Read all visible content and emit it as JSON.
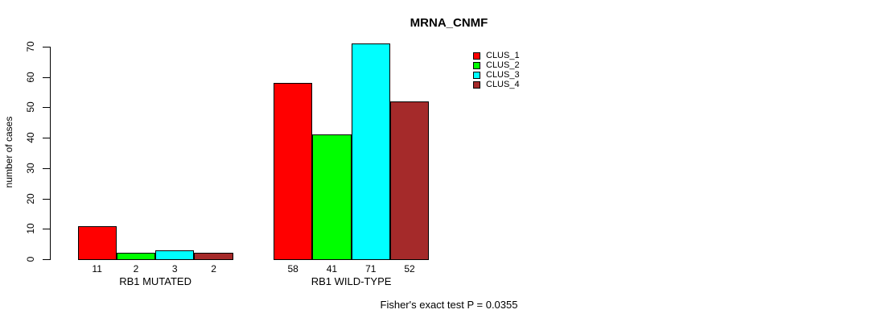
{
  "title": "MRNA_CNMF",
  "footer": "Fisher's exact test P = 0.0355",
  "chart_data": {
    "type": "bar",
    "title": "MRNA_CNMF",
    "xlabel": "",
    "ylabel": "number of cases",
    "ylim": [
      0,
      70
    ],
    "yticks": [
      0,
      10,
      20,
      30,
      40,
      50,
      60,
      70
    ],
    "grid": false,
    "legend_position": "top-right",
    "legend": [
      {
        "label": "CLUS_1",
        "color": "#ff0000"
      },
      {
        "label": "CLUS_2",
        "color": "#00ff00"
      },
      {
        "label": "CLUS_3",
        "color": "#00ffff"
      },
      {
        "label": "CLUS_4",
        "color": "#a52a2a"
      }
    ],
    "categories": [
      "RB1 MUTATED",
      "RB1 WILD-TYPE"
    ],
    "series": [
      {
        "name": "CLUS_1",
        "values": [
          11,
          58
        ]
      },
      {
        "name": "CLUS_2",
        "values": [
          2,
          41
        ]
      },
      {
        "name": "CLUS_3",
        "values": [
          3,
          71
        ]
      },
      {
        "name": "CLUS_4",
        "values": [
          2,
          52
        ]
      }
    ],
    "groups": [
      {
        "label": "RB1 MUTATED",
        "values": [
          11,
          2,
          3,
          2
        ]
      },
      {
        "label": "RB1 WILD-TYPE",
        "values": [
          58,
          41,
          71,
          52
        ]
      }
    ],
    "bar_value_labels": [
      [
        11,
        2,
        3,
        2
      ],
      [
        58,
        41,
        71,
        52
      ]
    ],
    "annotation": "Fisher's exact test P = 0.0355"
  }
}
